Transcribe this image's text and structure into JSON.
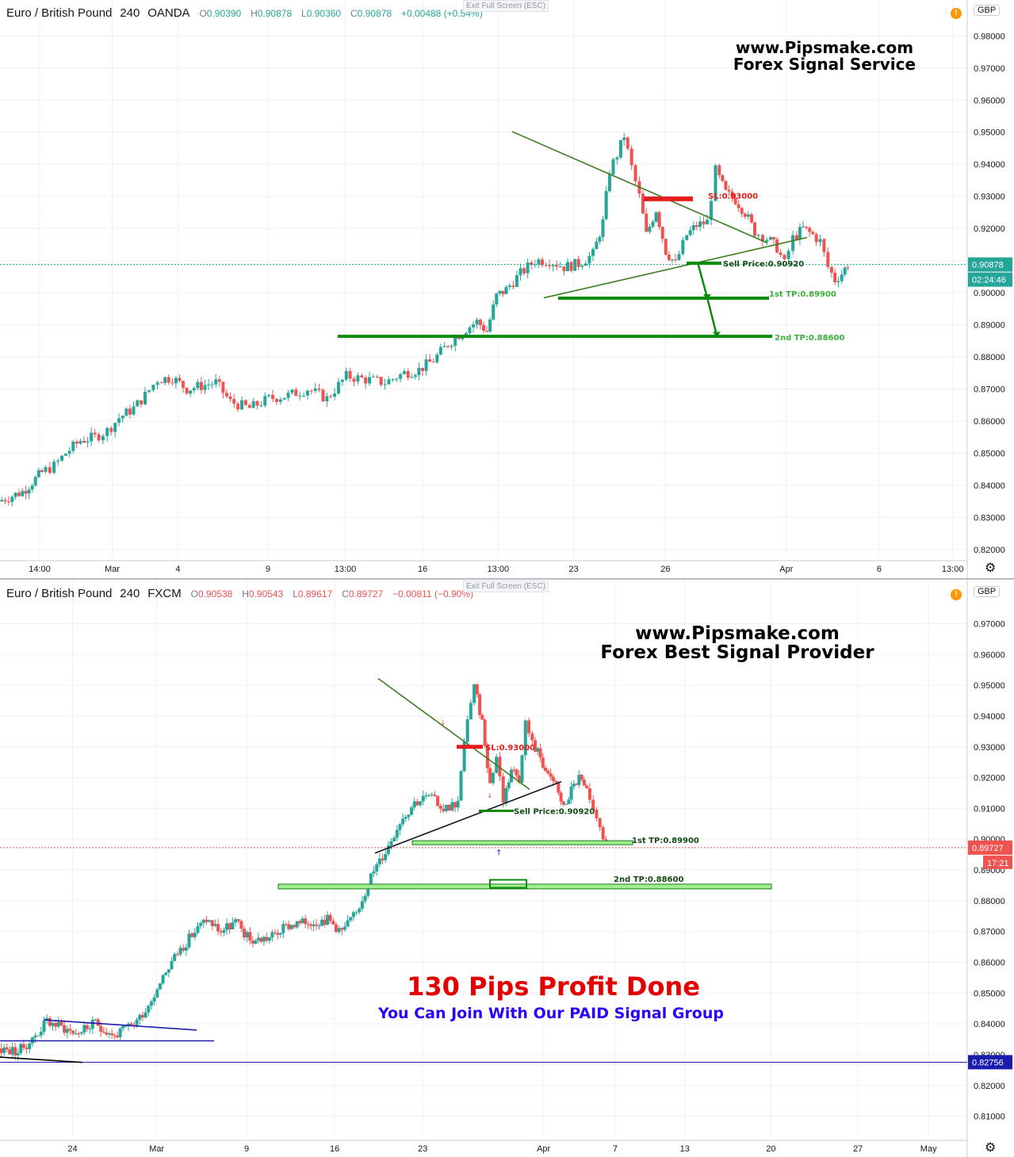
{
  "panels": [
    {
      "symbol": "Euro / British Pound",
      "interval": "240",
      "broker": "OANDA",
      "ohlc": {
        "o": "0.90390",
        "h": "0.90878",
        "l": "0.90360",
        "c": "0.90878",
        "chg": "+0.00488 (+0.54%)"
      },
      "exit_label": "Exit Full Screen (ESC)",
      "currency": "GBP",
      "brand_line1": "www.Pipsmake.com",
      "brand_line2": "Forex Signal Service",
      "price_label": "0.90878",
      "countdown": "02:24:46"
    },
    {
      "symbol": "Euro / British Pound",
      "interval": "240",
      "broker": "FXCM",
      "ohlc": {
        "o": "0.90538",
        "h": "0.90543",
        "l": "0.89617",
        "c": "0.89727",
        "chg": "−0.00811 (−0.90%)"
      },
      "exit_label": "Exit Full Screen (ESC)",
      "currency": "GBP",
      "brand_line1": "www.Pipsmake.com",
      "brand_line2": "Forex Best Signal Provider",
      "price_label": "0.89727",
      "countdown": "17:21",
      "extra_price_label": "0.82756",
      "headline": "130 Pips Profit Done",
      "subline": "You Can Join With Our PAID Signal Group"
    }
  ],
  "chart_data": [
    {
      "type": "candlestick",
      "title": "Euro / British Pound 240 OANDA",
      "y_ticks": [
        "0.82000",
        "0.83000",
        "0.84000",
        "0.85000",
        "0.86000",
        "0.87000",
        "0.88000",
        "0.89000",
        "0.90000",
        "0.91000",
        "0.92000",
        "0.93000",
        "0.94000",
        "0.95000",
        "0.96000",
        "0.97000",
        "0.98000"
      ],
      "x_ticks": [
        "14:00",
        "Mar",
        "4",
        "9",
        "13:00",
        "16",
        "13:00",
        "23",
        "26",
        "Apr",
        "6",
        "13:00"
      ],
      "ylim": [
        0.8175,
        0.9912
      ],
      "current_price": 0.90878,
      "annotations": {
        "sl": "SL:0.93000",
        "sell": "Sell Price:0.90920",
        "tp1": "1st TP:0.89900",
        "tp2": "2nd TP:0.88600"
      },
      "levels": {
        "sl": 0.93,
        "sell": 0.9092,
        "tp1": 0.899,
        "tp2": 0.886
      },
      "path": [
        [
          0.0,
          0.835
        ],
        [
          0.025,
          0.838
        ],
        [
          0.035,
          0.841
        ],
        [
          0.045,
          0.844
        ],
        [
          0.058,
          0.846
        ],
        [
          0.07,
          0.85
        ],
        [
          0.085,
          0.854
        ],
        [
          0.1,
          0.855
        ],
        [
          0.113,
          0.857
        ],
        [
          0.125,
          0.861
        ],
        [
          0.14,
          0.864
        ],
        [
          0.152,
          0.868
        ],
        [
          0.165,
          0.873
        ],
        [
          0.18,
          0.8735
        ],
        [
          0.195,
          0.87
        ],
        [
          0.21,
          0.871
        ],
        [
          0.225,
          0.872
        ],
        [
          0.24,
          0.866
        ],
        [
          0.26,
          0.864
        ],
        [
          0.28,
          0.867
        ],
        [
          0.3,
          0.868
        ],
        [
          0.32,
          0.87
        ],
        [
          0.34,
          0.867
        ],
        [
          0.36,
          0.874
        ],
        [
          0.38,
          0.873
        ],
        [
          0.4,
          0.872
        ],
        [
          0.42,
          0.875
        ],
        [
          0.435,
          0.876
        ],
        [
          0.45,
          0.879
        ],
        [
          0.465,
          0.884
        ],
        [
          0.48,
          0.888
        ],
        [
          0.495,
          0.891
        ],
        [
          0.505,
          0.888
        ],
        [
          0.515,
          0.899
        ],
        [
          0.525,
          0.901
        ],
        [
          0.54,
          0.906
        ],
        [
          0.555,
          0.91
        ],
        [
          0.57,
          0.91
        ],
        [
          0.585,
          0.908
        ],
        [
          0.6,
          0.909
        ],
        [
          0.615,
          0.912
        ],
        [
          0.625,
          0.922
        ],
        [
          0.632,
          0.938
        ],
        [
          0.64,
          0.943
        ],
        [
          0.647,
          0.949
        ],
        [
          0.655,
          0.939
        ],
        [
          0.663,
          0.93
        ],
        [
          0.67,
          0.918
        ],
        [
          0.68,
          0.926
        ],
        [
          0.69,
          0.913
        ],
        [
          0.7,
          0.909
        ],
        [
          0.712,
          0.918
        ],
        [
          0.722,
          0.921
        ],
        [
          0.733,
          0.922
        ],
        [
          0.742,
          0.938
        ],
        [
          0.752,
          0.931
        ],
        [
          0.762,
          0.929
        ],
        [
          0.772,
          0.925
        ],
        [
          0.782,
          0.919
        ],
        [
          0.795,
          0.917
        ],
        [
          0.805,
          0.914
        ],
        [
          0.813,
          0.909
        ],
        [
          0.822,
          0.917
        ],
        [
          0.832,
          0.92
        ],
        [
          0.842,
          0.918
        ],
        [
          0.85,
          0.916
        ],
        [
          0.858,
          0.908
        ],
        [
          0.865,
          0.904
        ],
        [
          0.872,
          0.906
        ],
        [
          0.878,
          0.9088
        ]
      ]
    },
    {
      "type": "candlestick",
      "title": "Euro / British Pound 240 FXCM",
      "y_ticks": [
        "0.81000",
        "0.82000",
        "0.83000",
        "0.84000",
        "0.85000",
        "0.86000",
        "0.87000",
        "0.88000",
        "0.89000",
        "0.90000",
        "0.91000",
        "0.92000",
        "0.93000",
        "0.94000",
        "0.95000",
        "0.96000",
        "0.97000"
      ],
      "x_ticks": [
        "24",
        "Mar",
        "9",
        "16",
        "23",
        "Apr",
        "7",
        "13",
        "20",
        "27",
        "May"
      ],
      "ylim": [
        0.8032,
        0.9843
      ],
      "current_price": 0.89727,
      "annotations": {
        "sl": "SL:0.93000",
        "sell": "Sell Price:0.90920",
        "tp1": "1st TP:0.89900",
        "tp2": "2nd TP:0.88600"
      },
      "levels": {
        "sl": 0.93,
        "sell": 0.9092,
        "tp1": 0.899,
        "tp2": 0.886,
        "support": 0.82756
      },
      "path": [
        [
          0.0,
          0.832
        ],
        [
          0.02,
          0.831
        ],
        [
          0.035,
          0.835
        ],
        [
          0.05,
          0.841
        ],
        [
          0.065,
          0.839
        ],
        [
          0.08,
          0.837
        ],
        [
          0.1,
          0.84
        ],
        [
          0.12,
          0.836
        ],
        [
          0.14,
          0.84
        ],
        [
          0.155,
          0.846
        ],
        [
          0.17,
          0.856
        ],
        [
          0.185,
          0.863
        ],
        [
          0.2,
          0.869
        ],
        [
          0.215,
          0.874
        ],
        [
          0.23,
          0.87
        ],
        [
          0.245,
          0.873
        ],
        [
          0.26,
          0.867
        ],
        [
          0.28,
          0.868
        ],
        [
          0.3,
          0.872
        ],
        [
          0.32,
          0.873
        ],
        [
          0.34,
          0.874
        ],
        [
          0.355,
          0.87
        ],
        [
          0.37,
          0.876
        ],
        [
          0.385,
          0.888
        ],
        [
          0.4,
          0.896
        ],
        [
          0.415,
          0.906
        ],
        [
          0.43,
          0.912
        ],
        [
          0.445,
          0.914
        ],
        [
          0.46,
          0.91
        ],
        [
          0.475,
          0.912
        ],
        [
          0.485,
          0.94
        ],
        [
          0.492,
          0.949
        ],
        [
          0.5,
          0.938
        ],
        [
          0.508,
          0.918
        ],
        [
          0.515,
          0.927
        ],
        [
          0.522,
          0.913
        ],
        [
          0.53,
          0.923
        ],
        [
          0.538,
          0.92
        ],
        [
          0.545,
          0.938
        ],
        [
          0.552,
          0.931
        ],
        [
          0.56,
          0.927
        ],
        [
          0.568,
          0.92
        ],
        [
          0.576,
          0.918
        ],
        [
          0.584,
          0.91
        ],
        [
          0.592,
          0.916
        ],
        [
          0.6,
          0.92
        ],
        [
          0.608,
          0.915
        ],
        [
          0.615,
          0.908
        ],
        [
          0.622,
          0.905
        ],
        [
          0.628,
          0.8972
        ]
      ]
    }
  ]
}
